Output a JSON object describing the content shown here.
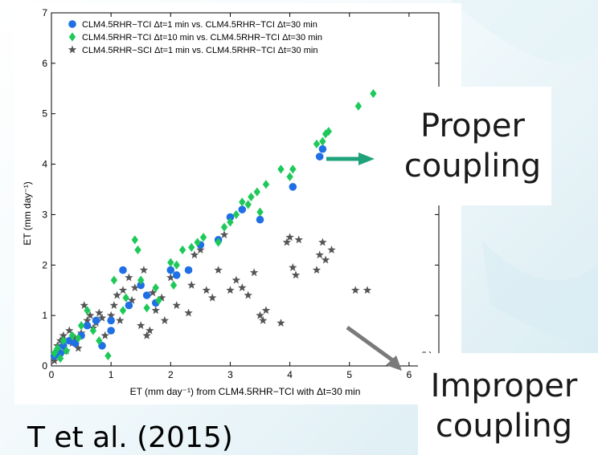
{
  "slide": {
    "fragment_left": "c",
    "fragment_bottom": "T       et al. (2015)",
    "callouts": {
      "proper": [
        "Proper",
        "coupling"
      ],
      "improper": [
        "Improper",
        "coupling"
      ],
      "proper_arrow_color": "#1fa27a",
      "improper_arrow_color": "#7a7a7a"
    }
  },
  "chart_data": {
    "type": "scatter",
    "panel_label": "(b)",
    "xlabel": "ET (mm day⁻¹) from CLM4.5RHR−TCI with Δt=30 min",
    "ylabel": "ET (mm day⁻¹)",
    "xlim": [
      0,
      6.5
    ],
    "ylim": [
      0,
      7
    ],
    "xticks": [
      "0",
      "1",
      "2",
      "3",
      "4",
      "5",
      "6"
    ],
    "yticks": [
      "0",
      "1",
      "2",
      "3",
      "4",
      "5",
      "6",
      "7"
    ],
    "legend_position": "top",
    "series": [
      {
        "name": "CLM4.5RHR−TCI Δt=1 min vs. CLM4.5RHR−TCI Δt=30 min",
        "marker": "circle",
        "color": "#1f6fe5",
        "points": [
          [
            0.05,
            0.2
          ],
          [
            0.1,
            0.3
          ],
          [
            0.15,
            0.25
          ],
          [
            0.2,
            0.4
          ],
          [
            0.3,
            0.5
          ],
          [
            0.4,
            0.45
          ],
          [
            0.5,
            0.6
          ],
          [
            0.6,
            0.8
          ],
          [
            0.75,
            0.9
          ],
          [
            0.85,
            0.4
          ],
          [
            1.0,
            0.7
          ],
          [
            1.0,
            0.9
          ],
          [
            1.2,
            1.9
          ],
          [
            1.3,
            1.2
          ],
          [
            1.5,
            1.6
          ],
          [
            1.6,
            1.4
          ],
          [
            1.75,
            1.25
          ],
          [
            2.0,
            1.9
          ],
          [
            2.1,
            1.8
          ],
          [
            2.3,
            1.9
          ],
          [
            2.5,
            2.4
          ],
          [
            2.8,
            2.5
          ],
          [
            3.0,
            2.95
          ],
          [
            3.2,
            3.1
          ],
          [
            3.5,
            2.9
          ],
          [
            4.05,
            3.55
          ],
          [
            4.5,
            4.15
          ],
          [
            4.55,
            4.3
          ]
        ]
      },
      {
        "name": "CLM4.5RHR−TCI Δt=10 min vs. CLM4.5RHR−TCI Δt=30 min",
        "marker": "diamond",
        "color": "#1ec95a",
        "points": [
          [
            0.05,
            0.25
          ],
          [
            0.1,
            0.35
          ],
          [
            0.15,
            0.15
          ],
          [
            0.2,
            0.5
          ],
          [
            0.25,
            0.3
          ],
          [
            0.35,
            0.6
          ],
          [
            0.45,
            0.55
          ],
          [
            0.5,
            0.8
          ],
          [
            0.6,
            1.1
          ],
          [
            0.7,
            0.7
          ],
          [
            0.8,
            0.5
          ],
          [
            0.95,
            0.2
          ],
          [
            1.05,
            1.7
          ],
          [
            1.2,
            1.1
          ],
          [
            1.25,
            1.35
          ],
          [
            1.4,
            2.5
          ],
          [
            1.45,
            2.3
          ],
          [
            1.5,
            1.7
          ],
          [
            1.6,
            1.15
          ],
          [
            1.75,
            1.55
          ],
          [
            1.8,
            1.3
          ],
          [
            2.0,
            2.05
          ],
          [
            2.05,
            1.6
          ],
          [
            2.1,
            2.0
          ],
          [
            2.2,
            2.3
          ],
          [
            2.35,
            2.35
          ],
          [
            2.45,
            2.45
          ],
          [
            2.55,
            2.55
          ],
          [
            2.8,
            2.45
          ],
          [
            2.9,
            2.75
          ],
          [
            3.0,
            2.85
          ],
          [
            3.1,
            3.0
          ],
          [
            3.2,
            3.25
          ],
          [
            3.3,
            3.2
          ],
          [
            3.35,
            3.35
          ],
          [
            3.45,
            3.45
          ],
          [
            3.5,
            3.05
          ],
          [
            3.6,
            3.6
          ],
          [
            3.85,
            3.9
          ],
          [
            4.0,
            3.75
          ],
          [
            4.05,
            3.9
          ],
          [
            4.45,
            4.4
          ],
          [
            4.55,
            4.45
          ],
          [
            4.6,
            4.6
          ],
          [
            4.65,
            4.65
          ],
          [
            5.15,
            5.15
          ],
          [
            5.4,
            5.4
          ]
        ]
      },
      {
        "name": "CLM4.5RHR−SCI Δt=1 min vs. CLM4.5RHR−TCI Δt=30 min",
        "marker": "star",
        "color": "#555555",
        "points": [
          [
            0.05,
            0.1
          ],
          [
            0.1,
            0.4
          ],
          [
            0.15,
            0.5
          ],
          [
            0.2,
            0.6
          ],
          [
            0.25,
            0.3
          ],
          [
            0.3,
            0.7
          ],
          [
            0.35,
            0.45
          ],
          [
            0.4,
            0.55
          ],
          [
            0.45,
            0.35
          ],
          [
            0.5,
            0.65
          ],
          [
            0.55,
            1.2
          ],
          [
            0.6,
            0.9
          ],
          [
            0.65,
            1.0
          ],
          [
            0.7,
            0.75
          ],
          [
            0.75,
            0.85
          ],
          [
            0.8,
            1.05
          ],
          [
            0.85,
            0.95
          ],
          [
            0.9,
            0.6
          ],
          [
            1.0,
            1.0
          ],
          [
            1.05,
            1.2
          ],
          [
            1.1,
            1.4
          ],
          [
            1.15,
            0.9
          ],
          [
            1.2,
            1.5
          ],
          [
            1.3,
            1.75
          ],
          [
            1.35,
            1.3
          ],
          [
            1.4,
            1.55
          ],
          [
            1.5,
            0.8
          ],
          [
            1.55,
            1.9
          ],
          [
            1.6,
            0.6
          ],
          [
            1.65,
            0.7
          ],
          [
            1.7,
            1.45
          ],
          [
            1.75,
            1.1
          ],
          [
            1.85,
            1.35
          ],
          [
            1.9,
            0.9
          ],
          [
            2.0,
            1.75
          ],
          [
            2.1,
            1.2
          ],
          [
            2.3,
            1.05
          ],
          [
            2.35,
            1.6
          ],
          [
            2.4,
            2.2
          ],
          [
            2.5,
            2.3
          ],
          [
            2.6,
            1.5
          ],
          [
            2.7,
            1.35
          ],
          [
            2.8,
            1.9
          ],
          [
            2.9,
            2.6
          ],
          [
            3.0,
            1.5
          ],
          [
            3.1,
            1.7
          ],
          [
            3.2,
            1.55
          ],
          [
            3.3,
            1.4
          ],
          [
            3.4,
            1.85
          ],
          [
            3.5,
            1.0
          ],
          [
            3.55,
            0.9
          ],
          [
            3.6,
            1.1
          ],
          [
            3.85,
            0.85
          ],
          [
            3.95,
            2.45
          ],
          [
            4.0,
            2.55
          ],
          [
            4.05,
            1.95
          ],
          [
            4.1,
            1.8
          ],
          [
            4.15,
            2.5
          ],
          [
            4.45,
            1.9
          ],
          [
            4.5,
            2.2
          ],
          [
            4.55,
            2.45
          ],
          [
            4.6,
            2.1
          ],
          [
            4.7,
            2.3
          ],
          [
            5.1,
            1.5
          ],
          [
            5.3,
            1.5
          ]
        ]
      }
    ]
  }
}
